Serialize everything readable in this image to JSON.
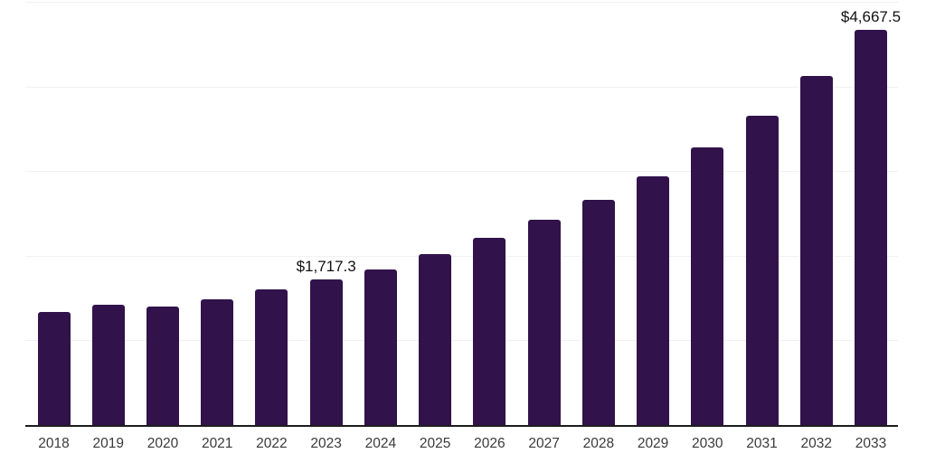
{
  "chart_data": {
    "type": "bar",
    "title": "",
    "xlabel": "",
    "ylabel": "",
    "categories": [
      "2018",
      "2019",
      "2020",
      "2021",
      "2022",
      "2023",
      "2024",
      "2025",
      "2026",
      "2027",
      "2028",
      "2029",
      "2030",
      "2031",
      "2032",
      "2033"
    ],
    "values": [
      1335,
      1424,
      1399,
      1486,
      1599,
      1717.3,
      1843,
      2021,
      2207,
      2421,
      2664,
      2941,
      3276,
      3659,
      4128,
      4667.5
    ],
    "ylim": [
      0,
      5000
    ],
    "gridline_interval": 1000,
    "grid": "horizontal",
    "legend_position": "none",
    "y_axis_tick_labels_visible": false,
    "data_labels": [
      {
        "category": "2023",
        "text": "$1,717.3"
      },
      {
        "category": "2033",
        "text": "$4,667.5"
      }
    ],
    "colors": {
      "bar": "#31124b",
      "background": "#ffffff",
      "gridline": "#f1f1f1",
      "axis_line": "#1c1c1c",
      "tick_label": "#3a3a3a",
      "data_label": "#111111"
    }
  }
}
